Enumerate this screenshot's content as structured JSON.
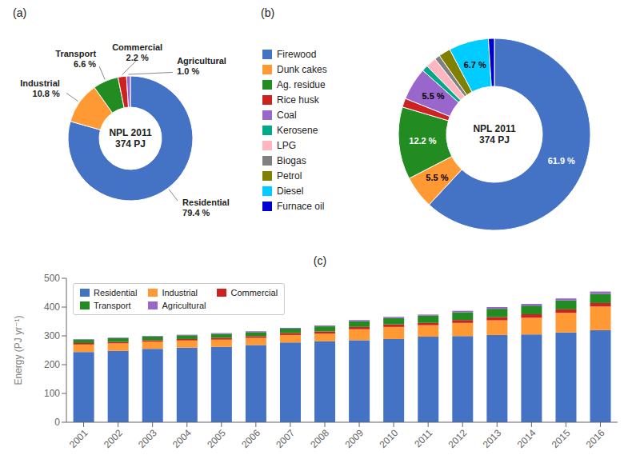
{
  "chart_data": [
    {
      "type": "pie",
      "title": "(a)",
      "categories": [
        "Residential",
        "Industrial",
        "Transport",
        "Commercial",
        "Agricultural"
      ],
      "values": [
        79.4,
        10.8,
        6.6,
        2.2,
        1.0
      ],
      "colors": [
        "#4472C4",
        "#FF9933",
        "#228B22",
        "#CC2222",
        "#9966CC"
      ],
      "annotations": [
        "NPL 2011\n374 PJ"
      ],
      "data_labels": true,
      "value_labels": [
        "79.4 %",
        "10.8 %",
        "6.6 %",
        "2.2 %",
        "1.0 %"
      ]
    },
    {
      "type": "pie",
      "title": "(b)",
      "categories": [
        "Firewood",
        "Dunk cakes",
        "Ag. residue",
        "Rice husk",
        "Coal",
        "Kerosene",
        "LPG",
        "Biogas",
        "Petrol",
        "Diesel",
        "Furnace oil"
      ],
      "values": [
        61.9,
        5.5,
        12.2,
        1.5,
        5.5,
        1.0,
        1.8,
        0.9,
        2.0,
        6.7,
        1.0
      ],
      "colors": [
        "#4472C4",
        "#FF9933",
        "#228B22",
        "#CC2222",
        "#9966CC",
        "#00AA88",
        "#FFB6C1",
        "#808080",
        "#808000",
        "#00CCFF",
        "#0000CC"
      ],
      "annotations": [
        "NPL 2011\n374 PJ"
      ],
      "data_labels": true,
      "value_labels": [
        "61.9 %",
        "5.5 %",
        "12.2 %",
        null,
        "5.5 %",
        null,
        null,
        null,
        null,
        "6.7 %",
        null
      ],
      "legend": "left"
    },
    {
      "type": "bar",
      "title": "(c)",
      "categories": [
        "2001",
        "2002",
        "2003",
        "2004",
        "2005",
        "2006",
        "2007",
        "2008",
        "2009",
        "2010",
        "2011",
        "2012",
        "2013",
        "2014",
        "2015",
        "2016"
      ],
      "series": [
        {
          "name": "Residential",
          "color": "#4472C4",
          "values": [
            244,
            248,
            255,
            259,
            262,
            268,
            277,
            281,
            285,
            289,
            297,
            299,
            303,
            305,
            312,
            320
          ]
        },
        {
          "name": "Industrial",
          "color": "#FF9933",
          "values": [
            26,
            26,
            25,
            25,
            25,
            25,
            26,
            27,
            38,
            42,
            40,
            46,
            51,
            58,
            68,
            82
          ]
        },
        {
          "name": "Commercial",
          "color": "#CC2222",
          "values": [
            5,
            5,
            5,
            5,
            6,
            6,
            7,
            7,
            8,
            9,
            8,
            10,
            11,
            12,
            12,
            12
          ]
        },
        {
          "name": "Transport",
          "color": "#228B22",
          "values": [
            12,
            13,
            13,
            13,
            14,
            14,
            15,
            18,
            20,
            22,
            25,
            27,
            29,
            30,
            31,
            32
          ]
        },
        {
          "name": "Agricultural",
          "color": "#9966CC",
          "values": [
            2,
            2,
            2,
            2,
            3,
            3,
            3,
            3,
            4,
            4,
            4,
            5,
            6,
            6,
            7,
            8
          ]
        }
      ],
      "stacked": true,
      "ylabel": "Energy (PJ yr⁻¹)",
      "ylim": [
        0,
        500
      ],
      "yticks": [
        0,
        100,
        200,
        300,
        400,
        500
      ],
      "legend": "upper left",
      "grid": false
    }
  ]
}
